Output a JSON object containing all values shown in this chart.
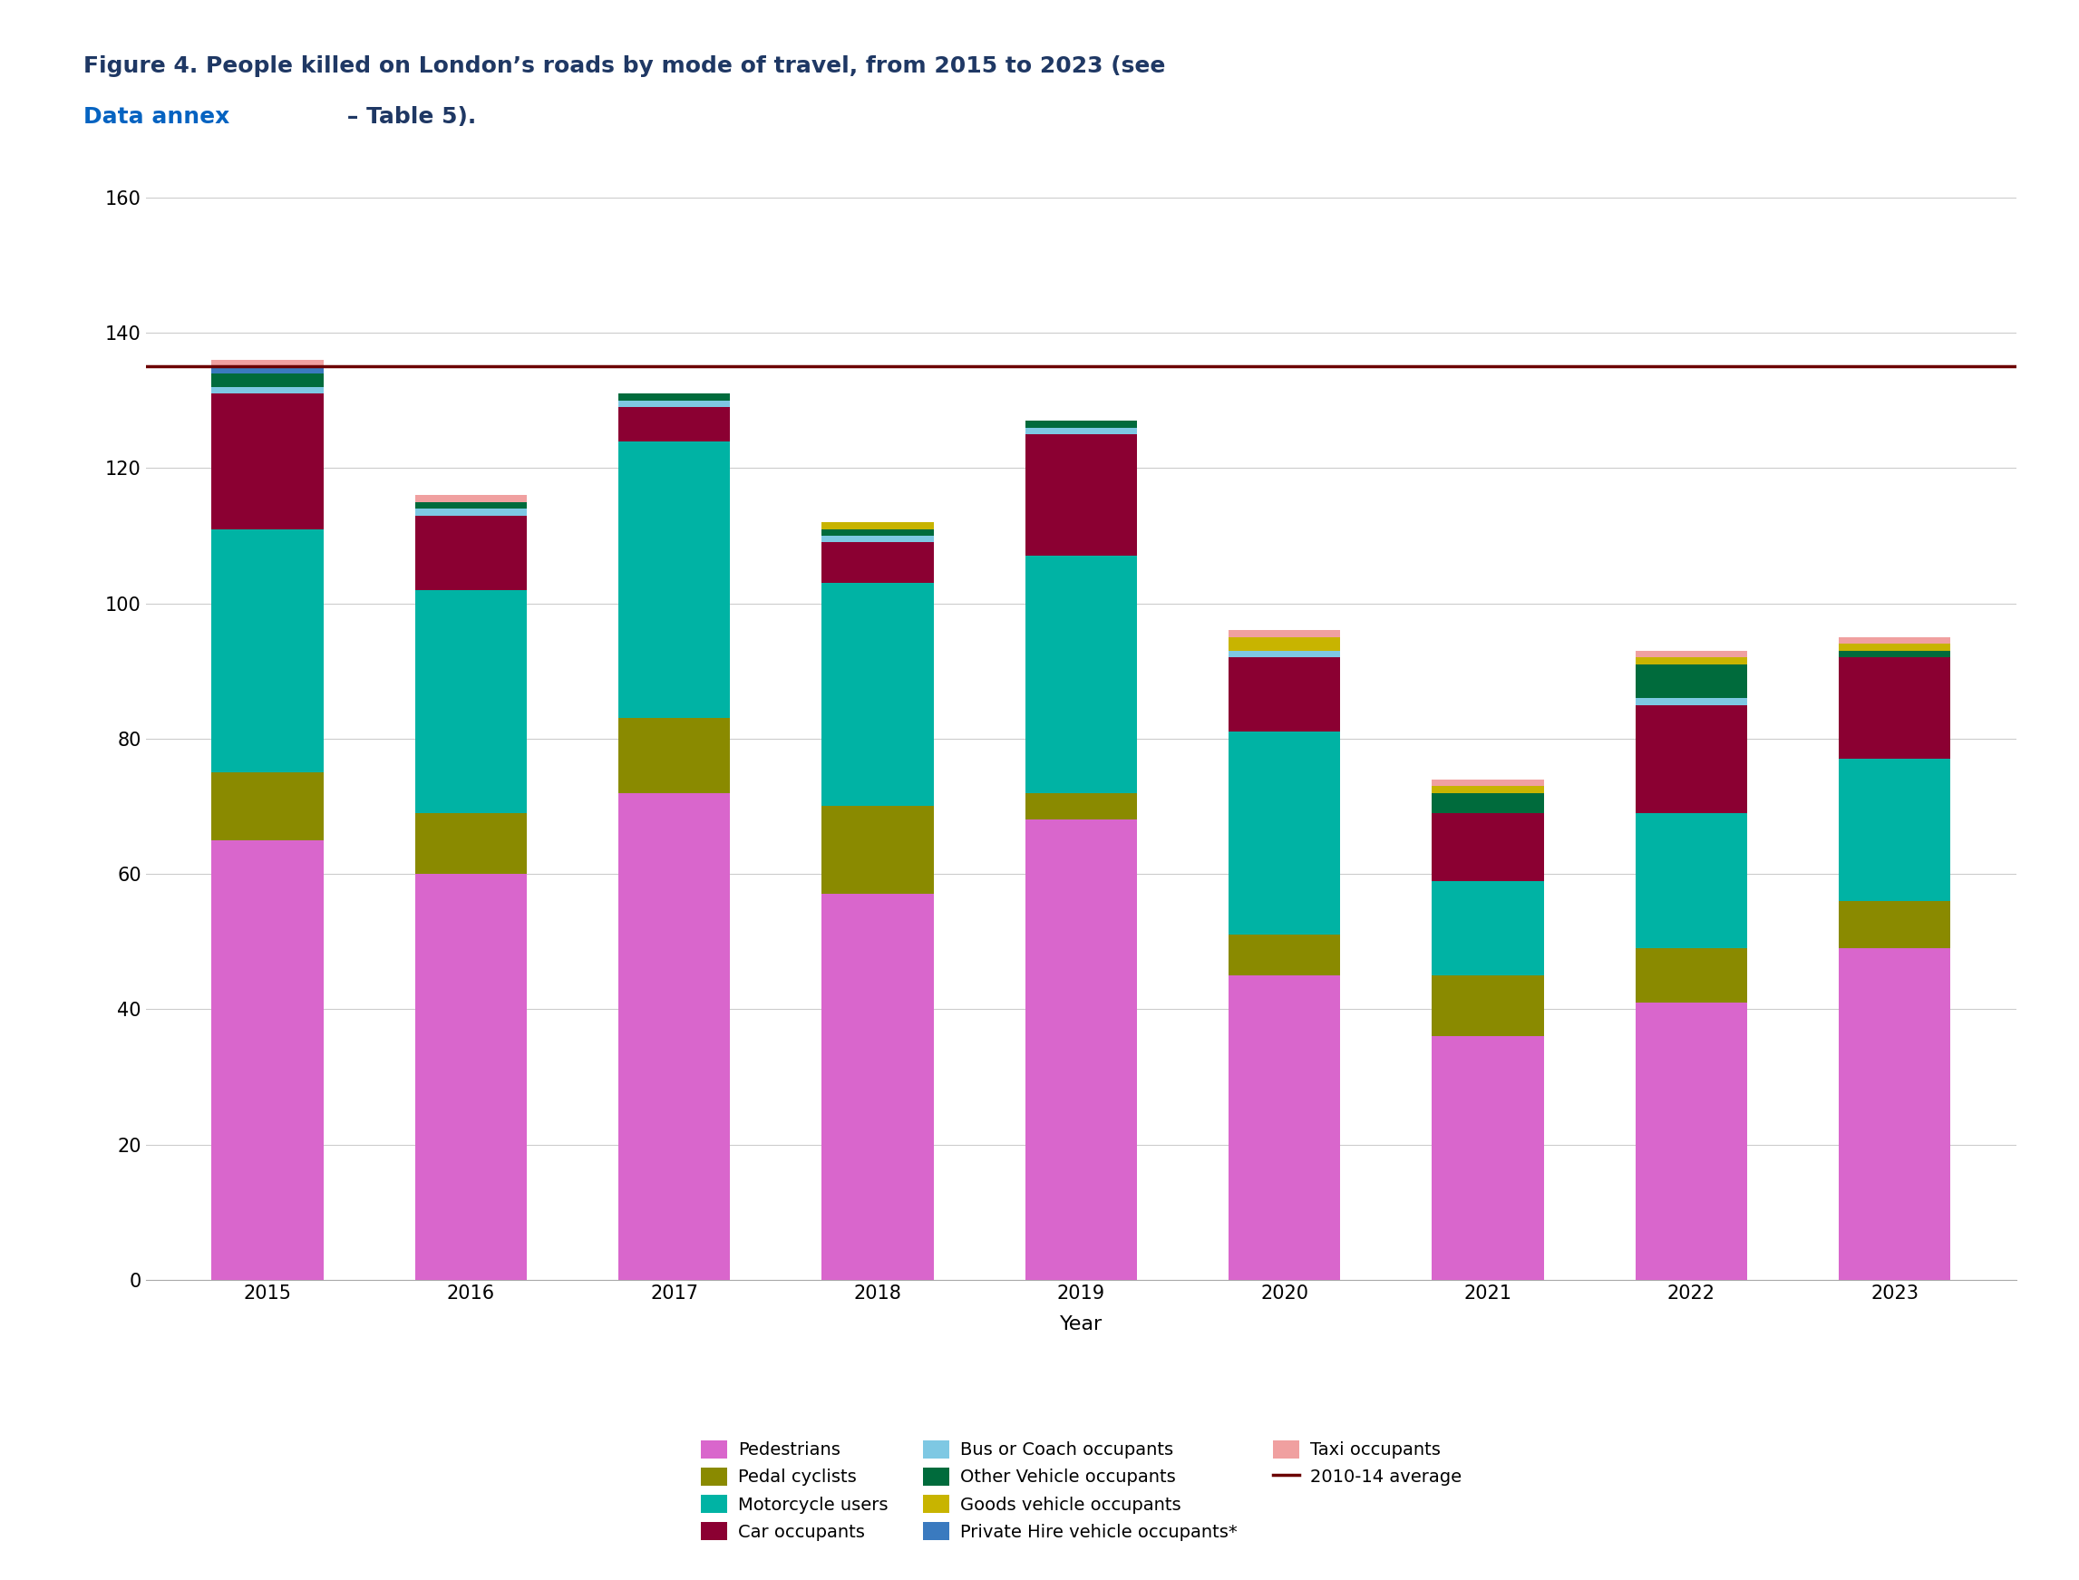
{
  "years": [
    2015,
    2016,
    2017,
    2018,
    2019,
    2020,
    2021,
    2022,
    2023
  ],
  "series": {
    "Pedestrians": [
      65,
      60,
      72,
      57,
      68,
      45,
      36,
      41,
      49
    ],
    "Pedal cyclists": [
      10,
      9,
      11,
      13,
      4,
      6,
      9,
      8,
      7
    ],
    "Motorcycle users": [
      36,
      33,
      41,
      33,
      35,
      30,
      14,
      20,
      21
    ],
    "Car occupants": [
      20,
      11,
      5,
      6,
      18,
      11,
      10,
      16,
      15
    ],
    "Bus or Coach occupants": [
      1,
      1,
      1,
      1,
      1,
      1,
      0,
      1,
      0
    ],
    "Other Vehicle occupants": [
      2,
      1,
      1,
      1,
      1,
      0,
      3,
      5,
      1
    ],
    "Goods vehicle occupants": [
      0,
      0,
      0,
      1,
      0,
      2,
      1,
      1,
      1
    ],
    "Private Hire vehicle occupants*": [
      1,
      0,
      0,
      0,
      0,
      0,
      0,
      0,
      0
    ],
    "Taxi occupants": [
      1,
      1,
      0,
      0,
      0,
      1,
      1,
      1,
      1
    ]
  },
  "colors": {
    "Pedestrians": "#d966cc",
    "Pedal cyclists": "#8a8a00",
    "Motorcycle users": "#00b3a4",
    "Car occupants": "#8b0032",
    "Bus or Coach occupants": "#7ec8e3",
    "Other Vehicle occupants": "#006b3c",
    "Goods vehicle occupants": "#c8b400",
    "Private Hire vehicle occupants*": "#3a7abf",
    "Taxi occupants": "#f0a0a0"
  },
  "average_line": 135,
  "average_line_color": "#6b0000",
  "ylim": [
    0,
    160
  ],
  "yticks": [
    0,
    20,
    40,
    60,
    80,
    100,
    120,
    140,
    160
  ],
  "xlabel": "Year",
  "title_line1": "Figure 4. People killed on London’s roads by mode of travel, from 2015 to 2023 (see",
  "title_link": "Data annex",
  "title_line2": " – Table 5).",
  "title_color": "#1f3864",
  "link_color": "#0563c1",
  "background_color": "#ffffff",
  "grid_color": "#cccccc",
  "legend_label_2010": "2010-14 average",
  "series_order": [
    "Pedestrians",
    "Pedal cyclists",
    "Motorcycle users",
    "Car occupants",
    "Bus or Coach occupants",
    "Other Vehicle occupants",
    "Goods vehicle occupants",
    "Private Hire vehicle occupants*",
    "Taxi occupants"
  ]
}
